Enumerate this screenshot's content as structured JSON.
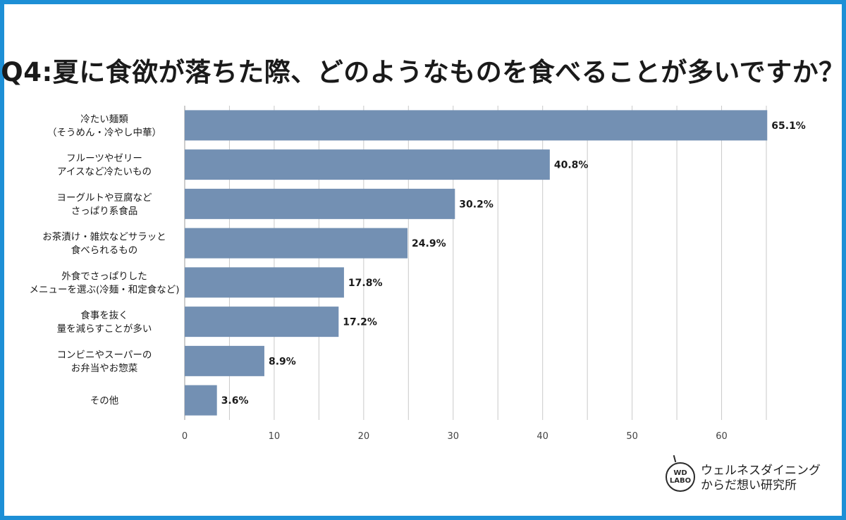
{
  "title": "Q4:夏に食欲が落ちた際、どのようなものを食べることが多いですか？",
  "brand": {
    "logo_line1": "WD",
    "logo_line2": "LABO",
    "name_line1": "ウェルネスダイニング",
    "name_line2": "からだ想い研究所"
  },
  "colors": {
    "bar": "#7390b3",
    "grid": "#c9c9c9",
    "axis": "#9a9a9a",
    "text": "#1a1a1a",
    "border": "#1d8fd6"
  },
  "chart_data": {
    "type": "bar",
    "orientation": "horizontal",
    "categories": [
      [
        "冷たい麺類",
        "（そうめん・冷やし中華）"
      ],
      [
        "フルーツやゼリー",
        "アイスなど冷たいもの"
      ],
      [
        "ヨーグルトや豆腐など",
        "さっぱり系食品"
      ],
      [
        "お茶漬け・雑炊などサラッと",
        "食べられるもの"
      ],
      [
        "外食でさっぱりした",
        "メニューを選ぶ(冷麺・和定食など)"
      ],
      [
        "食事を抜く",
        "量を減らすことが多い"
      ],
      [
        "コンビニやスーパーの",
        "お弁当やお惣菜"
      ],
      [
        "その他"
      ]
    ],
    "values": [
      65.1,
      40.8,
      30.2,
      24.9,
      17.8,
      17.2,
      8.9,
      3.6
    ],
    "value_labels": [
      "65.1%",
      "40.8%",
      "30.2%",
      "24.9%",
      "17.8%",
      "17.2%",
      "8.9%",
      "3.6%"
    ],
    "xlim": [
      0,
      65
    ],
    "xticks": [
      0,
      10,
      20,
      30,
      40,
      50,
      60
    ],
    "grid": true,
    "xlabel": "",
    "ylabel": ""
  }
}
